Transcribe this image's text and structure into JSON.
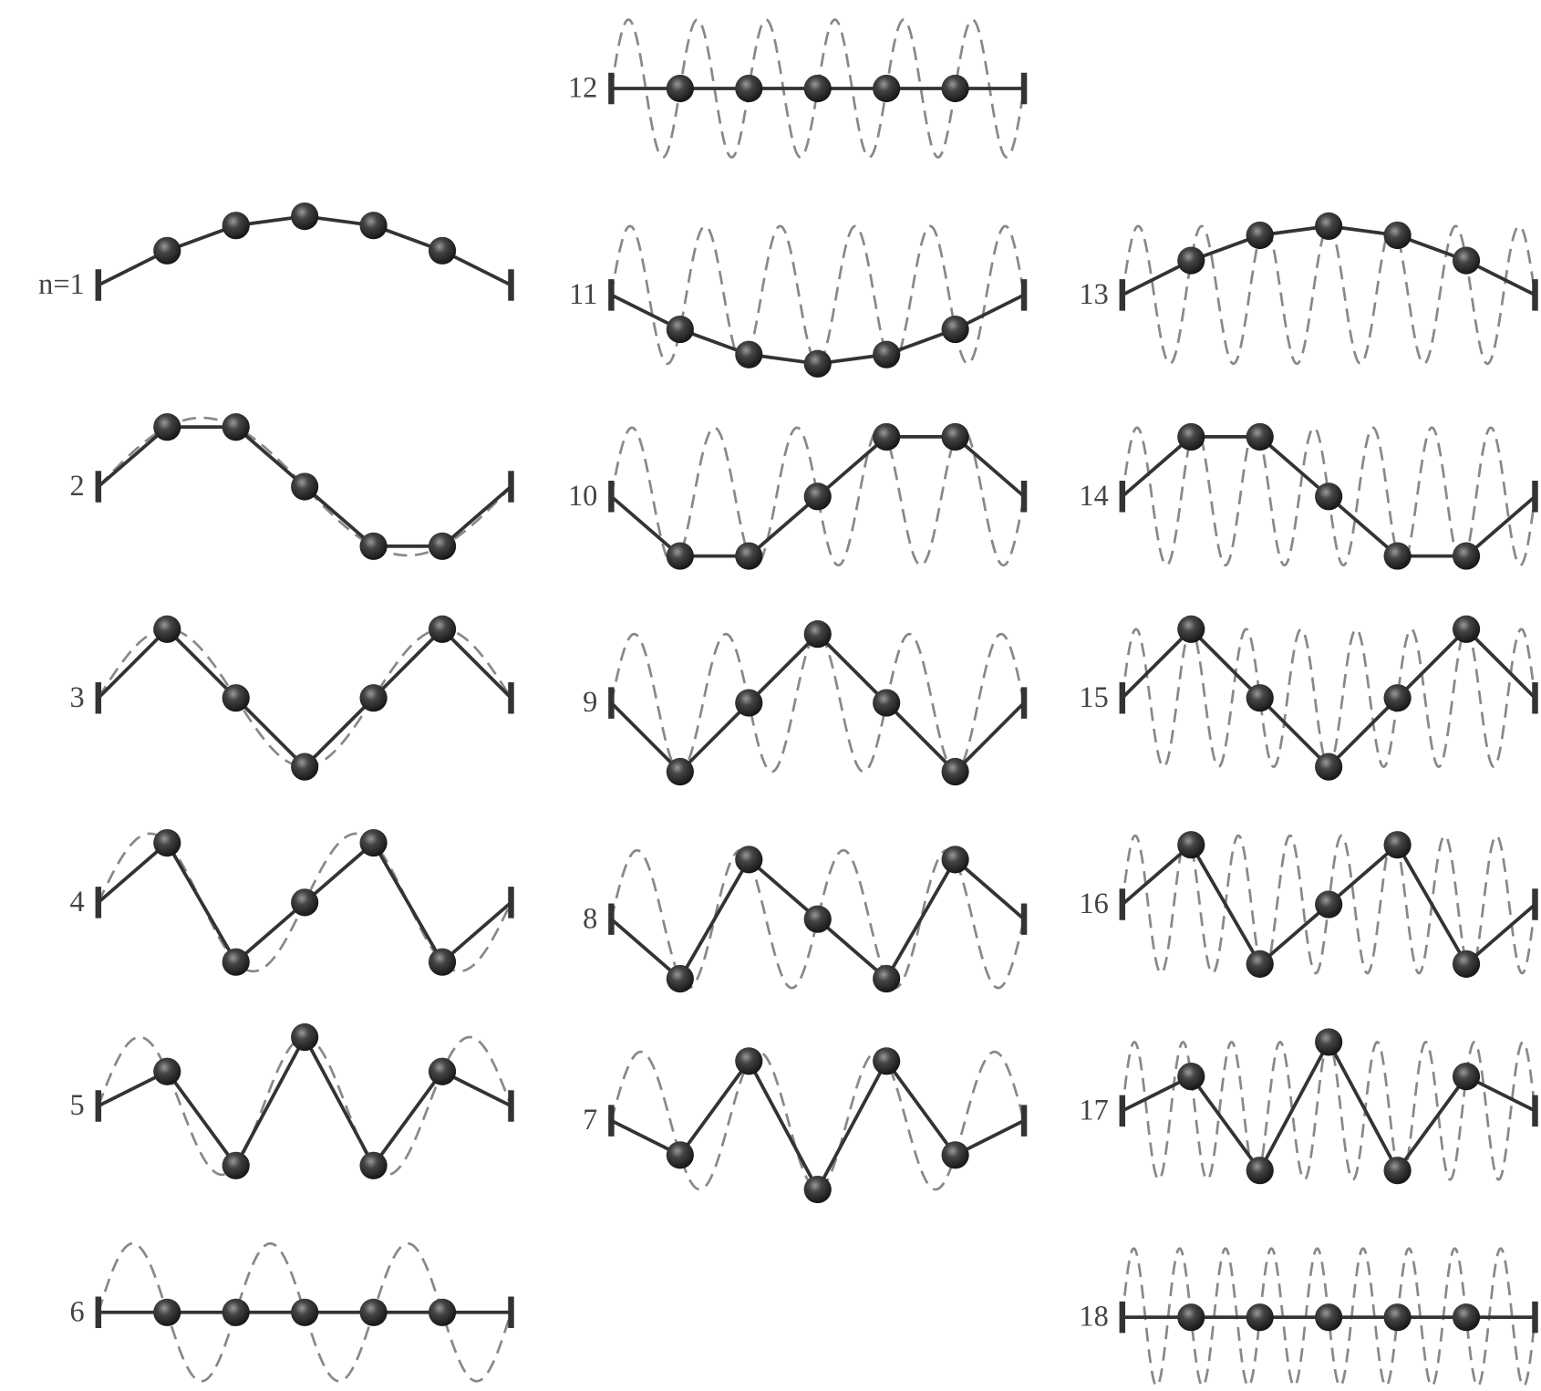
{
  "modes": [
    {
      "label": "n=1"
    },
    {
      "label": "2"
    },
    {
      "label": "3"
    },
    {
      "label": "4"
    },
    {
      "label": "5"
    },
    {
      "label": "6"
    },
    {
      "label": "7"
    },
    {
      "label": "8"
    },
    {
      "label": "9"
    },
    {
      "label": "10"
    },
    {
      "label": "11"
    },
    {
      "label": "12"
    },
    {
      "label": "13"
    },
    {
      "label": "14"
    },
    {
      "label": "15"
    },
    {
      "label": "16"
    },
    {
      "label": "17"
    },
    {
      "label": "18"
    }
  ]
}
